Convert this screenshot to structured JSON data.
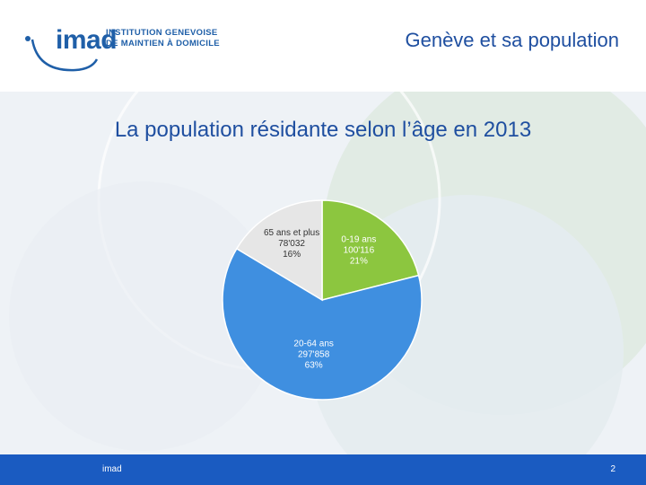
{
  "header": {
    "logo_word": "imad",
    "logo_line1": "INSTITUTION GENEVOISE",
    "logo_line2": "DE MAINTIEN À DOMICILE",
    "title": "Genève et sa population"
  },
  "slide": {
    "title": "La population résidante selon l’âge en 2013"
  },
  "chart_data": {
    "type": "pie",
    "title": "La population résidante selon l’âge en 2013",
    "slices": [
      {
        "label": "0-19 ans",
        "value_text": "100'116",
        "percent_text": "21%",
        "value": 100116,
        "color": "#8cc63f"
      },
      {
        "label": "20-64 ans",
        "value_text": "297'858",
        "percent_text": "63%",
        "value": 297858,
        "color": "#3f8fe0"
      },
      {
        "label": "65 ans et plus",
        "value_text": "78'032",
        "percent_text": "16%",
        "value": 78032,
        "color": "#e6e6e6"
      }
    ]
  },
  "footer": {
    "left": "imad",
    "right": "2"
  }
}
